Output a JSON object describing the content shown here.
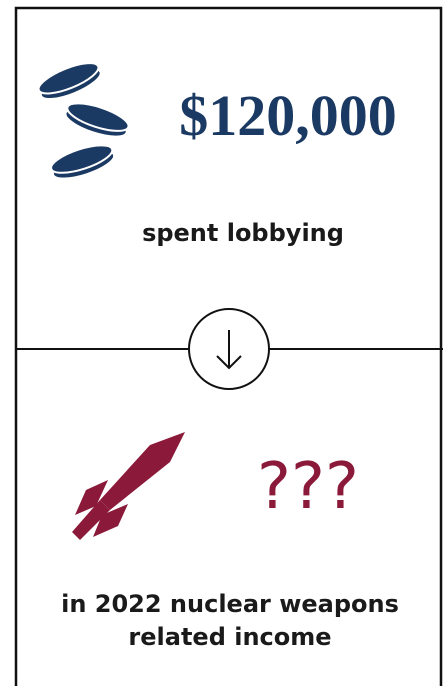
{
  "top": {
    "amount": "$120,000",
    "label": "spent lobbying"
  },
  "bottom": {
    "amount": "???",
    "label_lines": [
      "in 2022 nuclear weapons",
      "related income"
    ]
  }
}
